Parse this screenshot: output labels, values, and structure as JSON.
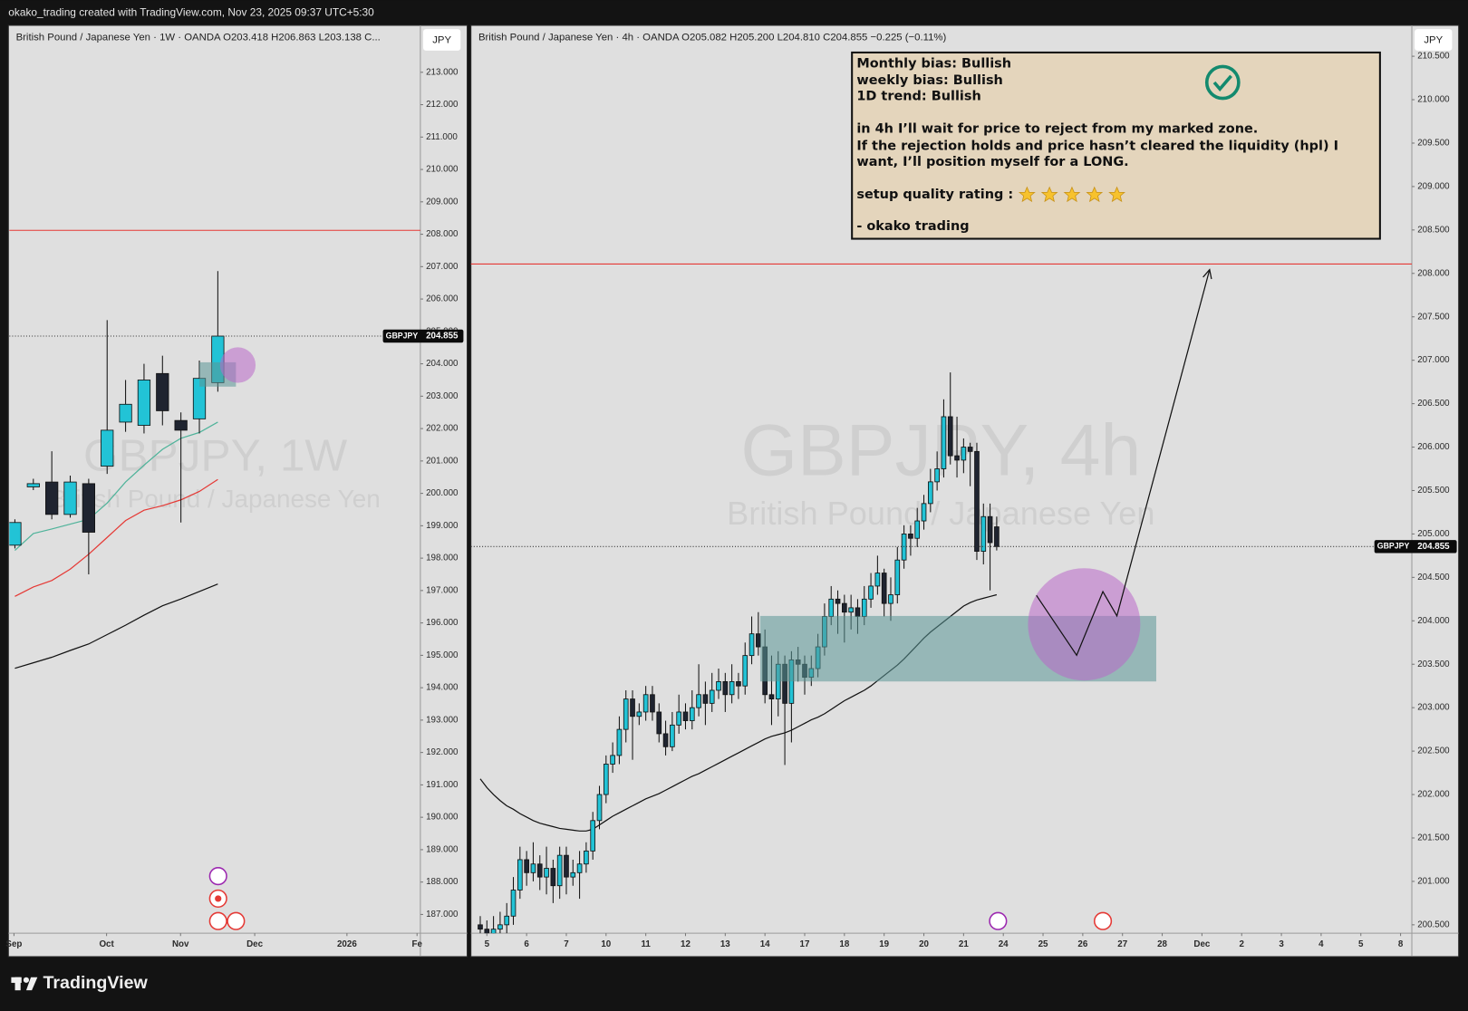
{
  "header": "okako_trading created with TradingView.com, Nov 23, 2025 09:37 UTC+5:30",
  "footer": "TradingView",
  "chart_data": [
    {
      "type": "candlestick",
      "title": "British Pound / Japanese Yen · 1W · OANDA  O203.418  H206.863  L203.138  C...",
      "currency": "JPY",
      "watermark": "GBPJPY, 1W",
      "watermark_subtitle": "British Pound / Japanese Yen",
      "symbol": "GBPJPY",
      "last_price": 204.855,
      "up_color": "#22c3d6",
      "down_color": "#1f2430",
      "x": [
        0,
        1,
        2,
        3,
        4,
        5,
        6,
        7,
        8,
        9,
        10,
        11
      ],
      "open": [
        198.4,
        200.2,
        200.35,
        199.35,
        200.3,
        200.84,
        202.2,
        202.1,
        203.7,
        202.25,
        202.3,
        203.418
      ],
      "high": [
        199.2,
        200.45,
        201.3,
        200.55,
        200.45,
        205.35,
        203.5,
        204.0,
        204.25,
        202.5,
        204.1,
        206.863
      ],
      "low": [
        198.3,
        200.1,
        199.2,
        199.25,
        197.5,
        200.6,
        201.9,
        201.85,
        202.1,
        199.1,
        201.85,
        203.138
      ],
      "close": [
        199.1,
        200.3,
        199.35,
        200.35,
        198.8,
        201.95,
        202.75,
        203.5,
        202.55,
        201.95,
        203.55,
        204.855
      ],
      "lines": [
        {
          "color": "#4fb39a",
          "values": [
            198.24,
            198.76,
            198.9,
            199.05,
            199.2,
            199.7,
            200.35,
            200.87,
            201.36,
            201.7,
            201.88,
            202.2
          ]
        },
        {
          "color": "#e53935",
          "values": [
            196.82,
            197.11,
            197.31,
            197.66,
            198.12,
            198.64,
            199.16,
            199.48,
            199.62,
            199.8,
            200.06,
            200.43
          ]
        },
        {
          "color": "#111111",
          "values": [
            194.6,
            194.77,
            194.94,
            195.15,
            195.35,
            195.64,
            195.93,
            196.24,
            196.53,
            196.74,
            196.97,
            197.2
          ]
        }
      ],
      "xlim": [
        -0.3,
        21.98
      ],
      "xticks": [
        {
          "value": -0.05,
          "label": "Sep"
        },
        {
          "value": 4.97,
          "label": "Oct"
        },
        {
          "value": 8.98,
          "label": "Nov"
        },
        {
          "value": 13,
          "label": "Dec"
        },
        {
          "value": 18,
          "label": "2026"
        },
        {
          "value": 21.8,
          "label": "Fe"
        }
      ],
      "ylim": [
        186.42,
        214.42
      ],
      "yticks": [
        {
          "value": 187,
          "label": "187.000"
        },
        {
          "value": 188,
          "label": "188.000"
        },
        {
          "value": 189,
          "label": "189.000"
        },
        {
          "value": 190,
          "label": "190.000"
        },
        {
          "value": 191,
          "label": "191.000"
        },
        {
          "value": 192,
          "label": "192.000"
        },
        {
          "value": 193,
          "label": "193.000"
        },
        {
          "value": 194,
          "label": "194.000"
        },
        {
          "value": 195,
          "label": "195.000"
        },
        {
          "value": 196,
          "label": "196.000"
        },
        {
          "value": 197,
          "label": "197.000"
        },
        {
          "value": 198,
          "label": "198.000"
        },
        {
          "value": 199,
          "label": "199.000"
        },
        {
          "value": 200,
          "label": "200.000"
        },
        {
          "value": 201,
          "label": "201.000"
        },
        {
          "value": 202,
          "label": "202.000"
        },
        {
          "value": 203,
          "label": "203.000"
        },
        {
          "value": 204,
          "label": "204.000"
        },
        {
          "value": 205,
          "label": "205.000"
        },
        {
          "value": 206,
          "label": "206.000"
        },
        {
          "value": 207,
          "label": "207.000"
        },
        {
          "value": 208,
          "label": "208.000"
        },
        {
          "value": 209,
          "label": "209.000"
        },
        {
          "value": 210,
          "label": "210.000"
        },
        {
          "value": 211,
          "label": "211.000"
        },
        {
          "value": 212,
          "label": "212.000"
        },
        {
          "value": 213,
          "label": "213.000"
        }
      ]
    },
    {
      "type": "candlestick",
      "title": "British Pound / Japanese Yen · 4h · OANDA  O205.082  H205.200  L204.810  C204.855  −0.225 (−0.11%)",
      "currency": "JPY",
      "watermark": "GBPJPY, 4h",
      "watermark_subtitle": "British Pound / Japanese Yen",
      "symbol": "GBPJPY",
      "last_price": 204.855,
      "up_color": "#22c3d6",
      "down_color": "#1f2430",
      "annotation": [
        "Monthly bias: Bullish",
        "weekly bias: Bullish",
        "1D trend: Bullish",
        "in 4h I’ll wait for price to reject from my marked zone.",
        "If the rejection holds and price hasn’t cleared the liquidity (hpl) I",
        "want, I’ll position myself for a LONG.",
        "setup quality rating :",
        "- okako trading"
      ],
      "x": [
        0,
        1,
        2,
        3,
        4,
        5,
        6,
        7,
        8,
        9,
        10,
        11,
        12,
        13,
        14,
        15,
        16,
        17,
        18,
        19,
        20,
        21,
        22,
        23,
        24,
        25,
        26,
        27,
        28,
        29,
        30,
        31,
        32,
        33,
        34,
        35,
        36,
        37,
        38,
        39,
        40,
        41,
        42,
        43,
        44,
        45,
        46,
        47,
        48,
        49,
        50,
        51,
        52,
        53,
        54,
        55,
        56,
        57,
        58,
        59,
        60,
        61,
        62,
        63,
        64,
        65,
        66,
        67,
        68,
        69,
        70,
        71,
        72,
        73,
        74,
        75,
        76,
        77,
        78
      ],
      "open": [
        200.5,
        200.45,
        200.4,
        200.45,
        200.5,
        200.6,
        200.9,
        201.25,
        201.1,
        201.2,
        201.05,
        201.15,
        200.95,
        201.3,
        201.05,
        201.1,
        201.2,
        201.35,
        201.7,
        202.0,
        202.35,
        202.45,
        202.75,
        203.1,
        202.9,
        202.95,
        203.15,
        202.95,
        202.7,
        202.55,
        202.8,
        202.95,
        202.85,
        203.0,
        203.15,
        203.05,
        203.2,
        203.3,
        203.15,
        203.3,
        203.25,
        203.6,
        203.85,
        203.7,
        203.15,
        203.1,
        203.5,
        203.05,
        203.55,
        203.5,
        203.35,
        203.45,
        203.7,
        204.05,
        204.25,
        204.2,
        204.1,
        204.15,
        204.05,
        204.25,
        204.4,
        204.55,
        204.2,
        204.3,
        204.7,
        205.0,
        204.95,
        205.15,
        205.35,
        205.6,
        205.75,
        206.35,
        205.9,
        205.85,
        206.0,
        205.95,
        204.8,
        205.2,
        205.082
      ],
      "high": [
        200.6,
        200.55,
        200.6,
        200.65,
        200.75,
        201.05,
        201.4,
        201.35,
        201.45,
        201.3,
        201.4,
        201.25,
        201.4,
        201.4,
        201.25,
        201.35,
        201.45,
        201.8,
        202.1,
        202.45,
        202.6,
        202.9,
        203.2,
        203.2,
        203.05,
        203.25,
        203.25,
        203.05,
        202.85,
        202.95,
        203.15,
        203.05,
        203.2,
        203.5,
        203.3,
        203.4,
        203.45,
        203.4,
        203.5,
        203.4,
        203.75,
        204.05,
        204.1,
        203.9,
        203.6,
        203.65,
        203.6,
        203.65,
        203.7,
        203.6,
        203.6,
        203.85,
        204.2,
        204.4,
        204.35,
        204.3,
        204.3,
        204.25,
        204.4,
        204.55,
        204.75,
        204.6,
        204.5,
        204.85,
        205.1,
        205.1,
        205.3,
        205.45,
        205.75,
        205.95,
        206.55,
        206.86,
        206.35,
        206.1,
        206.05,
        206.05,
        205.35,
        205.35,
        205.2
      ],
      "low": [
        200.3,
        200.3,
        200.3,
        200.35,
        200.4,
        200.5,
        200.8,
        200.95,
        201.0,
        200.9,
        200.85,
        200.75,
        200.8,
        200.85,
        200.95,
        200.8,
        201.1,
        201.25,
        201.6,
        201.9,
        202.25,
        202.35,
        202.6,
        202.4,
        202.8,
        202.85,
        202.85,
        202.6,
        202.45,
        202.5,
        202.7,
        202.75,
        202.75,
        202.9,
        202.8,
        202.95,
        203.1,
        202.95,
        203.05,
        203.1,
        203.15,
        203.5,
        203.6,
        203.05,
        202.8,
        202.9,
        202.34,
        202.6,
        203.3,
        203.15,
        203.25,
        203.35,
        203.6,
        203.95,
        203.85,
        203.75,
        203.9,
        203.85,
        203.95,
        204.15,
        204.3,
        204.05,
        204.0,
        204.2,
        204.6,
        204.75,
        204.85,
        205.05,
        205.25,
        205.5,
        205.65,
        205.8,
        205.65,
        205.7,
        205.55,
        204.7,
        204.65,
        204.35,
        204.81
      ],
      "close": [
        200.45,
        200.4,
        200.45,
        200.5,
        200.6,
        200.9,
        201.25,
        201.1,
        201.2,
        201.05,
        201.15,
        200.95,
        201.3,
        201.05,
        201.1,
        201.2,
        201.35,
        201.7,
        202.0,
        202.35,
        202.45,
        202.75,
        203.1,
        202.9,
        202.95,
        203.15,
        202.95,
        202.7,
        202.55,
        202.8,
        202.95,
        202.85,
        203.0,
        203.15,
        203.05,
        203.2,
        203.3,
        203.15,
        203.3,
        203.25,
        203.6,
        203.85,
        203.7,
        203.15,
        203.1,
        203.5,
        203.05,
        203.55,
        203.5,
        203.35,
        203.45,
        203.7,
        204.05,
        204.25,
        204.2,
        204.1,
        204.15,
        204.05,
        204.25,
        204.4,
        204.55,
        204.2,
        204.3,
        204.7,
        205.0,
        204.95,
        205.15,
        205.35,
        205.6,
        205.75,
        206.35,
        205.9,
        205.85,
        206.0,
        205.95,
        204.8,
        205.2,
        204.9,
        204.855
      ],
      "lines": [
        {
          "color": "#111111",
          "values": [
            202.18,
            202.08,
            202.0,
            201.93,
            201.87,
            201.83,
            201.78,
            201.74,
            201.7,
            201.67,
            201.65,
            201.63,
            201.61,
            201.6,
            201.59,
            201.58,
            201.58,
            201.6,
            201.65,
            201.7,
            201.75,
            201.79,
            201.83,
            201.87,
            201.91,
            201.95,
            201.98,
            202.01,
            202.05,
            202.09,
            202.13,
            202.17,
            202.21,
            202.24,
            202.28,
            202.32,
            202.36,
            202.4,
            202.44,
            202.48,
            202.52,
            202.56,
            202.6,
            202.64,
            202.67,
            202.69,
            202.71,
            202.74,
            202.78,
            202.82,
            202.86,
            202.89,
            202.93,
            202.98,
            203.03,
            203.08,
            203.12,
            203.16,
            203.2,
            203.25,
            203.31,
            203.37,
            203.43,
            203.49,
            203.56,
            203.64,
            203.72,
            203.8,
            203.87,
            203.93,
            203.99,
            204.05,
            204.11,
            204.17,
            204.21,
            204.24,
            204.26,
            204.28,
            204.3
          ]
        }
      ],
      "xlim": [
        -1.41,
        140.7
      ],
      "xticks": [
        {
          "value": 1,
          "label": "5"
        },
        {
          "value": 7,
          "label": "6"
        },
        {
          "value": 13,
          "label": "7"
        },
        {
          "value": 19,
          "label": "10"
        },
        {
          "value": 25,
          "label": "11"
        },
        {
          "value": 31,
          "label": "12"
        },
        {
          "value": 37,
          "label": "13"
        },
        {
          "value": 43,
          "label": "14"
        },
        {
          "value": 49,
          "label": "17"
        },
        {
          "value": 55,
          "label": "18"
        },
        {
          "value": 61,
          "label": "19"
        },
        {
          "value": 67,
          "label": "20"
        },
        {
          "value": 73,
          "label": "21"
        },
        {
          "value": 79,
          "label": "24"
        },
        {
          "value": 85,
          "label": "25"
        },
        {
          "value": 91,
          "label": "26"
        },
        {
          "value": 97,
          "label": "27"
        },
        {
          "value": 103,
          "label": "28"
        },
        {
          "value": 109,
          "label": "Dec"
        },
        {
          "value": 115,
          "label": "2"
        },
        {
          "value": 121,
          "label": "3"
        },
        {
          "value": 127,
          "label": "4"
        },
        {
          "value": 133,
          "label": "5"
        },
        {
          "value": 139,
          "label": "8"
        }
      ],
      "ylim": [
        200.403,
        210.845
      ],
      "yticks": [
        {
          "value": 200.5,
          "label": "200.500"
        },
        {
          "value": 201,
          "label": "201.000"
        },
        {
          "value": 201.5,
          "label": "201.500"
        },
        {
          "value": 202,
          "label": "202.000"
        },
        {
          "value": 202.5,
          "label": "202.500"
        },
        {
          "value": 203,
          "label": "203.000"
        },
        {
          "value": 203.5,
          "label": "203.500"
        },
        {
          "value": 204,
          "label": "204.000"
        },
        {
          "value": 204.5,
          "label": "204.500"
        },
        {
          "value": 205,
          "label": "205.000"
        },
        {
          "value": 205.5,
          "label": "205.500"
        },
        {
          "value": 206,
          "label": "206.000"
        },
        {
          "value": 206.5,
          "label": "206.500"
        },
        {
          "value": 207,
          "label": "207.000"
        },
        {
          "value": 207.5,
          "label": "207.500"
        },
        {
          "value": 208,
          "label": "208.000"
        },
        {
          "value": 208.5,
          "label": "208.500"
        },
        {
          "value": 209,
          "label": "209.000"
        },
        {
          "value": 209.5,
          "label": "209.500"
        },
        {
          "value": 210,
          "label": "210.000"
        },
        {
          "value": 210.5,
          "label": "210.500"
        }
      ]
    }
  ]
}
